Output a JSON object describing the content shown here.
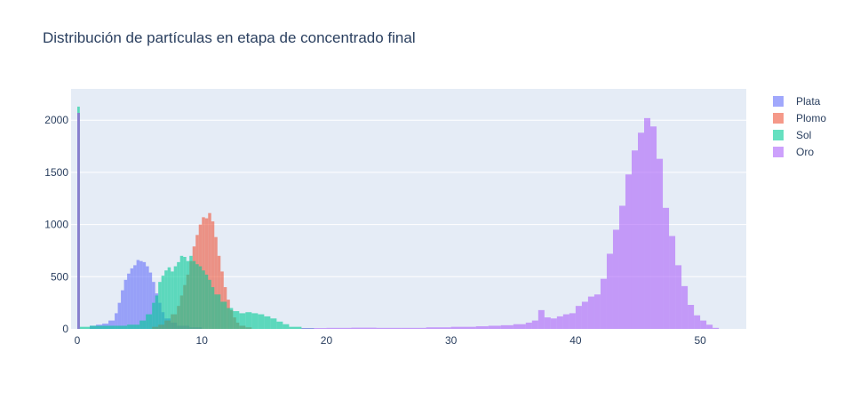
{
  "chart_data": {
    "type": "histogram",
    "title": "Distribución de partículas en etapa de concentrado final",
    "xlabel": "",
    "ylabel": "",
    "xlim": [
      -0.5,
      53.7
    ],
    "ylim": [
      0,
      2300
    ],
    "x_ticks": [
      0,
      10,
      20,
      30,
      40,
      50
    ],
    "y_ticks": [
      0,
      500,
      1000,
      1500,
      2000
    ],
    "grid": true,
    "legend_position": "top-right",
    "barmode": "overlay",
    "opacity": 0.6,
    "series": [
      {
        "name": "Plata",
        "color": "#636efa",
        "bins": [
          [
            0,
            0.2,
            2070
          ],
          [
            1.0,
            1.5,
            30
          ],
          [
            1.5,
            2.0,
            40
          ],
          [
            2.0,
            2.5,
            50
          ],
          [
            2.5,
            3.0,
            80
          ],
          [
            3.0,
            3.25,
            150
          ],
          [
            3.25,
            3.5,
            250
          ],
          [
            3.5,
            3.75,
            370
          ],
          [
            3.75,
            4.0,
            470
          ],
          [
            4.0,
            4.25,
            530
          ],
          [
            4.25,
            4.5,
            580
          ],
          [
            4.5,
            4.75,
            610
          ],
          [
            4.75,
            5.0,
            660
          ],
          [
            5.0,
            5.25,
            650
          ],
          [
            5.25,
            5.5,
            640
          ],
          [
            5.5,
            5.75,
            600
          ],
          [
            5.75,
            6.0,
            540
          ],
          [
            6.0,
            6.25,
            450
          ],
          [
            6.25,
            6.5,
            340
          ],
          [
            6.5,
            6.75,
            250
          ],
          [
            6.75,
            7.0,
            160
          ],
          [
            7.0,
            7.5,
            100
          ],
          [
            7.5,
            8.0,
            60
          ],
          [
            8.0,
            9.0,
            30
          ],
          [
            9.0,
            10.0,
            15
          ]
        ]
      },
      {
        "name": "Plomo",
        "color": "#ef553b",
        "bins": [
          [
            0,
            0.2,
            2070
          ],
          [
            6.0,
            6.5,
            20
          ],
          [
            6.5,
            7.0,
            40
          ],
          [
            7.0,
            7.5,
            80
          ],
          [
            7.5,
            8.0,
            140
          ],
          [
            8.0,
            8.25,
            220
          ],
          [
            8.25,
            8.5,
            320
          ],
          [
            8.5,
            8.75,
            420
          ],
          [
            8.75,
            9.0,
            520
          ],
          [
            9.0,
            9.25,
            650
          ],
          [
            9.25,
            9.5,
            790
          ],
          [
            9.5,
            9.75,
            900
          ],
          [
            9.75,
            10.0,
            1000
          ],
          [
            10.0,
            10.25,
            1070
          ],
          [
            10.25,
            10.5,
            1060
          ],
          [
            10.5,
            10.75,
            1110
          ],
          [
            10.75,
            11.0,
            1030
          ],
          [
            11.0,
            11.25,
            880
          ],
          [
            11.25,
            11.5,
            700
          ],
          [
            11.5,
            11.75,
            550
          ],
          [
            11.75,
            12.0,
            400
          ],
          [
            12.0,
            12.25,
            280
          ],
          [
            12.25,
            12.5,
            180
          ],
          [
            12.5,
            12.75,
            110
          ],
          [
            12.75,
            13.0,
            60
          ],
          [
            13.0,
            13.5,
            30
          ],
          [
            13.5,
            14.0,
            15
          ]
        ]
      },
      {
        "name": "Sol",
        "color": "#00cc96",
        "bins": [
          [
            0,
            0.2,
            2130
          ],
          [
            0.2,
            1.0,
            20
          ],
          [
            1.0,
            2.0,
            30
          ],
          [
            2.0,
            3.0,
            30
          ],
          [
            3.0,
            4.0,
            30
          ],
          [
            4.0,
            5.0,
            40
          ],
          [
            5.0,
            5.5,
            80
          ],
          [
            5.5,
            6.0,
            140
          ],
          [
            6.0,
            6.25,
            250
          ],
          [
            6.25,
            6.5,
            320
          ],
          [
            6.5,
            6.75,
            450
          ],
          [
            6.75,
            7.0,
            510
          ],
          [
            7.0,
            7.25,
            560
          ],
          [
            7.25,
            7.5,
            590
          ],
          [
            7.5,
            7.75,
            550
          ],
          [
            7.75,
            8.0,
            600
          ],
          [
            8.0,
            8.25,
            640
          ],
          [
            8.25,
            8.5,
            700
          ],
          [
            8.5,
            8.75,
            690
          ],
          [
            8.75,
            9.0,
            650
          ],
          [
            9.0,
            9.25,
            700
          ],
          [
            9.25,
            9.5,
            650
          ],
          [
            9.5,
            9.75,
            620
          ],
          [
            9.75,
            10.0,
            600
          ],
          [
            10.0,
            10.25,
            560
          ],
          [
            10.25,
            10.5,
            520
          ],
          [
            10.5,
            10.75,
            470
          ],
          [
            10.75,
            11.0,
            400
          ],
          [
            11.0,
            11.5,
            330
          ],
          [
            11.5,
            12.0,
            260
          ],
          [
            12.0,
            12.5,
            200
          ],
          [
            12.5,
            13.0,
            170
          ],
          [
            13.0,
            13.5,
            150
          ],
          [
            13.5,
            14.0,
            160
          ],
          [
            14.0,
            14.5,
            150
          ],
          [
            14.5,
            15.0,
            140
          ],
          [
            15.0,
            15.5,
            120
          ],
          [
            15.5,
            16.0,
            100
          ],
          [
            16.0,
            16.5,
            70
          ],
          [
            16.5,
            17.0,
            45
          ],
          [
            17.0,
            18.0,
            20
          ],
          [
            18.0,
            19.0,
            8
          ]
        ]
      },
      {
        "name": "Oro",
        "color": "#ab63fa",
        "bins": [
          [
            0,
            0.2,
            2070
          ],
          [
            18.0,
            20.0,
            8
          ],
          [
            20.0,
            22.0,
            10
          ],
          [
            22.0,
            24.0,
            12
          ],
          [
            24.0,
            26.0,
            10
          ],
          [
            26.0,
            28.0,
            10
          ],
          [
            28.0,
            30.0,
            15
          ],
          [
            30.0,
            32.0,
            20
          ],
          [
            32.0,
            33.0,
            25
          ],
          [
            33.0,
            34.0,
            30
          ],
          [
            34.0,
            35.0,
            35
          ],
          [
            35.0,
            36.0,
            45
          ],
          [
            36.0,
            36.5,
            60
          ],
          [
            36.5,
            37.0,
            80
          ],
          [
            37.0,
            37.5,
            180
          ],
          [
            37.5,
            38.0,
            110
          ],
          [
            38.0,
            38.5,
            100
          ],
          [
            38.5,
            39.0,
            120
          ],
          [
            39.0,
            39.5,
            140
          ],
          [
            39.5,
            40.0,
            150
          ],
          [
            40.0,
            40.5,
            220
          ],
          [
            40.5,
            41.0,
            260
          ],
          [
            41.0,
            41.5,
            310
          ],
          [
            41.5,
            42.0,
            330
          ],
          [
            42.0,
            42.5,
            480
          ],
          [
            42.5,
            43.0,
            720
          ],
          [
            43.0,
            43.5,
            950
          ],
          [
            43.5,
            44.0,
            1180
          ],
          [
            44.0,
            44.5,
            1480
          ],
          [
            44.5,
            45.0,
            1710
          ],
          [
            45.0,
            45.5,
            1880
          ],
          [
            45.5,
            46.0,
            2020
          ],
          [
            46.0,
            46.5,
            1940
          ],
          [
            46.5,
            47.0,
            1630
          ],
          [
            47.0,
            47.5,
            1160
          ],
          [
            47.5,
            48.0,
            890
          ],
          [
            48.0,
            48.5,
            610
          ],
          [
            48.5,
            49.0,
            410
          ],
          [
            49.0,
            49.5,
            230
          ],
          [
            49.5,
            50.0,
            130
          ],
          [
            50.0,
            50.5,
            80
          ],
          [
            50.5,
            51.0,
            40
          ],
          [
            51.0,
            51.5,
            10
          ]
        ]
      }
    ]
  }
}
